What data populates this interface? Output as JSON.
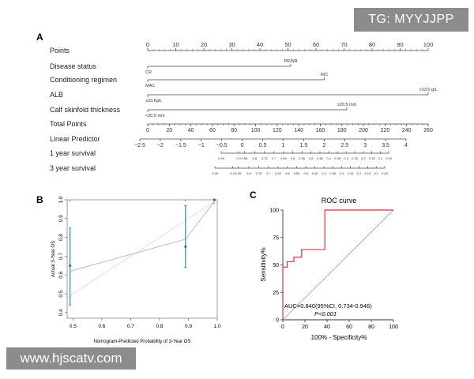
{
  "panels": {
    "a": {
      "letter": "A",
      "rows": [
        {
          "id": "points",
          "label": "Points"
        },
        {
          "id": "disease",
          "label": "Disease status",
          "levels": [
            "CR",
            "PR/NR"
          ]
        },
        {
          "id": "regimen",
          "label": "Conditioning regimen",
          "levels": [
            "MAC",
            "RIC"
          ]
        },
        {
          "id": "alb",
          "label": "ALB",
          "levels": [
            "≤33.6g/L",
            ">33.6 g/L"
          ]
        },
        {
          "id": "calf",
          "label": "Calf skinfold thickness",
          "levels": [
            "<20.5 mm",
            "≥20.5 mm"
          ]
        },
        {
          "id": "total",
          "label": "Total Points"
        },
        {
          "id": "lp",
          "label": "Linear Predictor"
        },
        {
          "id": "y1",
          "label": "1 year survival"
        },
        {
          "id": "y3",
          "label": "3 year survival"
        }
      ],
      "points_ticks": [
        "0",
        "10",
        "20",
        "30",
        "40",
        "50",
        "60",
        "70",
        "80",
        "90",
        "100"
      ],
      "total_ticks": [
        "0",
        "20",
        "40",
        "60",
        "80",
        "100",
        "120",
        "140",
        "160",
        "180",
        "200",
        "220",
        "240",
        "260"
      ],
      "lp_ticks": [
        "−2.5",
        "−2",
        "−1.5",
        "−1",
        "−0.5",
        "0",
        "0.5",
        "1",
        "1.5",
        "2",
        "2.5",
        "3",
        "3.5",
        "4"
      ],
      "y1_ticks": [
        "0.99",
        "0.9",
        "0.85",
        "0.8",
        "0.75",
        "0.7",
        "0.65",
        "0.6",
        "0.55",
        "0.5",
        "0.45",
        "0.4",
        "0.35",
        "0.3",
        "0.25",
        "0.2",
        "0.15",
        "0.1",
        "0.05"
      ],
      "y3_ticks": [
        "0.98",
        "0.9",
        "0.85",
        "0.8",
        "0.75",
        "0.7",
        "0.65",
        "0.6",
        "0.55",
        "0.5",
        "0.45",
        "0.4",
        "0.35",
        "0.3",
        "0.25",
        "0.2",
        "0.15",
        "0.1",
        "0.05"
      ]
    },
    "b": {
      "letter": "B",
      "xlabel": "Nomogram-Predicted Probability of 3-Year OS",
      "ylabel": "Actual 3-Year OS",
      "xticks": [
        "0.5",
        "0.6",
        "0.7",
        "0.8",
        "0.9",
        "1.0"
      ],
      "yticks": [
        "0.4",
        "0.5",
        "0.6",
        "0.7",
        "0.8",
        "0.9",
        "1.0"
      ]
    },
    "c": {
      "letter": "C",
      "title": "ROC curve",
      "xlabel": "100% - Specificity%",
      "ylabel": "Sensitivity%",
      "xticks": [
        "0",
        "20",
        "40",
        "60",
        "80",
        "100"
      ],
      "yticks": [
        "0",
        "25",
        "50",
        "75",
        "100"
      ],
      "auc_text": "AUC=0.840(95%CI, 0.734-0.946)",
      "p_text": "P<0.001"
    }
  },
  "watermarks": {
    "top": "TG: MYYJJPP",
    "bottom": "www.hjscatv.com"
  },
  "chart_data": [
    {
      "type": "line",
      "panel": "B",
      "xlabel": "Nomogram-Predicted Probability of 3-Year OS",
      "ylabel": "Actual 3-Year OS",
      "xlim": [
        0.48,
        1.0
      ],
      "ylim": [
        0.37,
        1.0
      ],
      "series": [
        {
          "style": "observed",
          "x": [
            0.49,
            0.89,
            0.99
          ],
          "y": [
            0.65,
            0.75,
            1.0
          ],
          "ci_low": [
            0.44,
            0.64,
            1.0
          ],
          "ci_high": [
            0.85,
            0.97,
            1.0
          ]
        },
        {
          "style": "fitted",
          "x": [
            0.49,
            0.89,
            0.99
          ],
          "y": [
            0.62,
            0.79,
            0.99
          ]
        }
      ],
      "reference": {
        "x": [
          0.48,
          1.0
        ],
        "y": [
          0.48,
          1.0
        ]
      }
    },
    {
      "type": "line",
      "panel": "C",
      "title": "ROC curve",
      "xlabel": "100% - Specificity%",
      "ylabel": "Sensitivity%",
      "xlim": [
        0,
        100
      ],
      "ylim": [
        0,
        100
      ],
      "series": [
        {
          "style": "roc",
          "x": [
            0,
            0,
            0,
            4,
            4,
            10,
            10,
            17,
            17,
            22,
            22,
            38,
            38,
            100
          ],
          "y": [
            0,
            43,
            48,
            48,
            53,
            53,
            57,
            57,
            64,
            64,
            64,
            64,
            100,
            100
          ]
        },
        {
          "style": "reference",
          "x": [
            0,
            100
          ],
          "y": [
            0,
            100
          ]
        }
      ]
    }
  ]
}
